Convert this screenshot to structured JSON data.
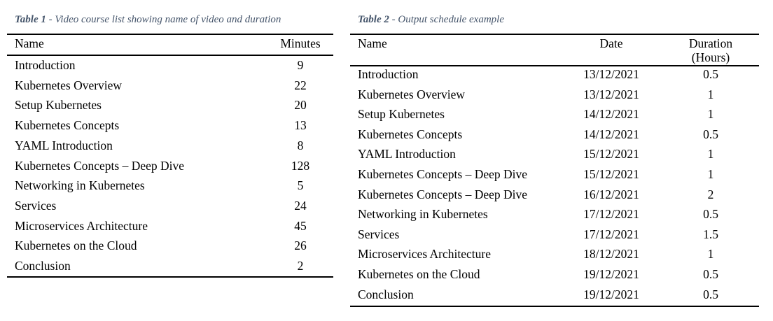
{
  "table1": {
    "caption_label": "Table 1",
    "caption_text": " - Video course list showing name of video and duration",
    "headers": {
      "name": "Name",
      "minutes": "Minutes"
    },
    "rows": [
      {
        "name": "Introduction",
        "minutes": "9"
      },
      {
        "name": "Kubernetes Overview",
        "minutes": "22"
      },
      {
        "name": "Setup Kubernetes",
        "minutes": "20"
      },
      {
        "name": "Kubernetes Concepts",
        "minutes": "13"
      },
      {
        "name": "YAML Introduction",
        "minutes": "8"
      },
      {
        "name": "Kubernetes Concepts – Deep Dive",
        "minutes": "128"
      },
      {
        "name": "Networking in Kubernetes",
        "minutes": "5"
      },
      {
        "name": "Services",
        "minutes": "24"
      },
      {
        "name": "Microservices Architecture",
        "minutes": "45"
      },
      {
        "name": "Kubernetes on the Cloud",
        "minutes": "26"
      },
      {
        "name": "Conclusion",
        "minutes": "2"
      }
    ]
  },
  "table2": {
    "caption_label": "Table 2",
    "caption_text": " - Output schedule example",
    "headers": {
      "name": "Name",
      "date": "Date",
      "duration_line1": "Duration",
      "duration_line2": "(Hours)"
    },
    "rows": [
      {
        "name": "Introduction",
        "date": "13/12/2021",
        "duration": "0.5"
      },
      {
        "name": "Kubernetes Overview",
        "date": "13/12/2021",
        "duration": "1"
      },
      {
        "name": "Setup Kubernetes",
        "date": "14/12/2021",
        "duration": "1"
      },
      {
        "name": "Kubernetes Concepts",
        "date": "14/12/2021",
        "duration": "0.5"
      },
      {
        "name": "YAML Introduction",
        "date": "15/12/2021",
        "duration": "1"
      },
      {
        "name": "Kubernetes Concepts – Deep Dive",
        "date": "15/12/2021",
        "duration": "1"
      },
      {
        "name": "Kubernetes Concepts – Deep Dive",
        "date": "16/12/2021",
        "duration": "2"
      },
      {
        "name": "Networking in Kubernetes",
        "date": "17/12/2021",
        "duration": "0.5"
      },
      {
        "name": "Services",
        "date": "17/12/2021",
        "duration": "1.5"
      },
      {
        "name": "Microservices Architecture",
        "date": "18/12/2021",
        "duration": "1"
      },
      {
        "name": "Kubernetes on the Cloud",
        "date": "19/12/2021",
        "duration": "0.5"
      },
      {
        "name": "Conclusion",
        "date": "19/12/2021",
        "duration": "0.5"
      }
    ]
  }
}
